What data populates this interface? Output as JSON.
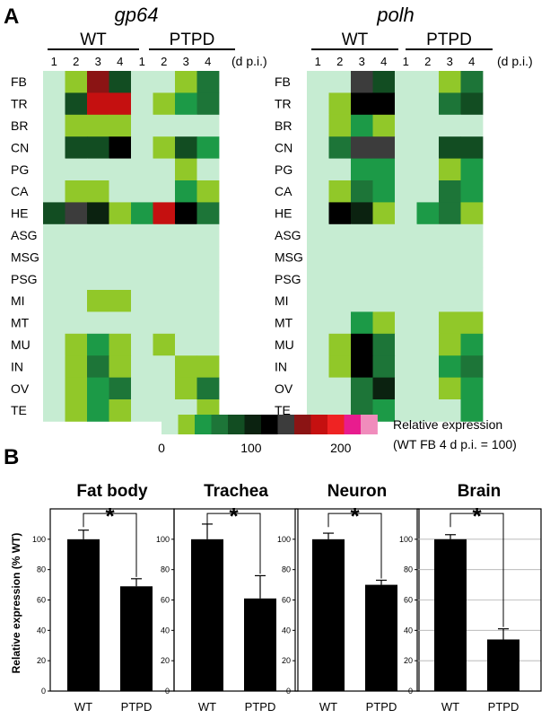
{
  "panel_a": {
    "label": "A",
    "day_unit": "(d p.i.)",
    "groups": [
      "WT",
      "PTPD"
    ],
    "days": [
      "1",
      "2",
      "3",
      "4"
    ],
    "tissues": [
      "FB",
      "TR",
      "BR",
      "CN",
      "PG",
      "CA",
      "HE",
      "ASG",
      "MSG",
      "PSG",
      "MI",
      "MT",
      "MU",
      "IN",
      "OV",
      "TE"
    ],
    "colors": {
      "0": "#c6ecd2",
      "1": "#91c829",
      "2": "#1c9a47",
      "3": "#1d7538",
      "4": "#124d22",
      "5": "#0b2210",
      "6": "#000000",
      "7": "#3c3c3c",
      "8": "#8b1414",
      "9": "#c51010",
      "10": "#ef2323",
      "11": "#e81c8e",
      "12": "#f08cbc"
    }
  },
  "legend": {
    "ticks": [
      "0",
      "100",
      "200"
    ],
    "title_line1": "Relative expression",
    "title_line2": "(WT FB 4 d p.i. = 100)"
  },
  "panel_b": {
    "label": "B",
    "ylabel": "Relative expression (% WT)"
  },
  "chart_data": [
    {
      "type": "heatmap",
      "title": "gp64",
      "column_groups": [
        "WT",
        "PTPD"
      ],
      "columns": [
        "1",
        "2",
        "3",
        "4",
        "1",
        "2",
        "3",
        "4"
      ],
      "xlabel": "(d p.i.)",
      "rows": [
        "FB",
        "TR",
        "BR",
        "CN",
        "PG",
        "CA",
        "HE",
        "ASG",
        "MSG",
        "PSG",
        "MI",
        "MT",
        "MU",
        "IN",
        "OV",
        "TE"
      ],
      "scale": {
        "min": 0,
        "max": 200,
        "levels": 13
      },
      "values": [
        [
          0,
          1,
          8,
          4,
          0,
          0,
          1,
          3
        ],
        [
          0,
          4,
          9,
          9,
          0,
          1,
          2,
          3
        ],
        [
          0,
          1,
          1,
          1,
          0,
          0,
          0,
          0
        ],
        [
          0,
          4,
          4,
          6,
          0,
          1,
          4,
          2
        ],
        [
          0,
          0,
          0,
          0,
          0,
          0,
          1,
          0
        ],
        [
          0,
          1,
          1,
          0,
          0,
          0,
          2,
          1
        ],
        [
          4,
          7,
          5,
          1,
          2,
          9,
          6,
          3
        ],
        [
          0,
          0,
          0,
          0,
          0,
          0,
          0,
          0
        ],
        [
          0,
          0,
          0,
          0,
          0,
          0,
          0,
          0
        ],
        [
          0,
          0,
          0,
          0,
          0,
          0,
          0,
          0
        ],
        [
          0,
          0,
          1,
          1,
          0,
          0,
          0,
          0
        ],
        [
          0,
          0,
          0,
          0,
          0,
          0,
          0,
          0
        ],
        [
          0,
          1,
          2,
          1,
          0,
          1,
          0,
          0
        ],
        [
          0,
          1,
          3,
          1,
          0,
          0,
          1,
          1
        ],
        [
          0,
          1,
          2,
          3,
          0,
          0,
          1,
          3
        ],
        [
          0,
          1,
          2,
          1,
          0,
          0,
          0,
          1
        ]
      ]
    },
    {
      "type": "heatmap",
      "title": "polh",
      "column_groups": [
        "WT",
        "PTPD"
      ],
      "columns": [
        "1",
        "2",
        "3",
        "4",
        "1",
        "2",
        "3",
        "4"
      ],
      "xlabel": "(d p.i.)",
      "rows": [
        "FB",
        "TR",
        "BR",
        "CN",
        "PG",
        "CA",
        "HE",
        "ASG",
        "MSG",
        "PSG",
        "MI",
        "MT",
        "MU",
        "IN",
        "OV",
        "TE"
      ],
      "scale": {
        "min": 0,
        "max": 200,
        "levels": 13
      },
      "values": [
        [
          0,
          0,
          7,
          4,
          0,
          0,
          1,
          3
        ],
        [
          0,
          1,
          6,
          6,
          0,
          0,
          3,
          4
        ],
        [
          0,
          1,
          2,
          1,
          0,
          0,
          0,
          0
        ],
        [
          0,
          3,
          7,
          7,
          0,
          0,
          4,
          4
        ],
        [
          0,
          0,
          2,
          2,
          0,
          0,
          1,
          2
        ],
        [
          0,
          1,
          3,
          2,
          0,
          0,
          3,
          2
        ],
        [
          0,
          6,
          5,
          1,
          0,
          2,
          3,
          1
        ],
        [
          0,
          0,
          0,
          0,
          0,
          0,
          0,
          0
        ],
        [
          0,
          0,
          0,
          0,
          0,
          0,
          0,
          0
        ],
        [
          0,
          0,
          0,
          0,
          0,
          0,
          0,
          0
        ],
        [
          0,
          0,
          0,
          0,
          0,
          0,
          0,
          0
        ],
        [
          0,
          0,
          2,
          1,
          0,
          0,
          1,
          1
        ],
        [
          0,
          1,
          6,
          3,
          0,
          0,
          1,
          2
        ],
        [
          0,
          1,
          6,
          3,
          0,
          0,
          2,
          3
        ],
        [
          0,
          0,
          3,
          5,
          0,
          0,
          1,
          2
        ],
        [
          0,
          0,
          3,
          2,
          0,
          0,
          0,
          2
        ]
      ]
    },
    {
      "type": "bar",
      "title": "Fat body",
      "categories": [
        "WT",
        "PTPD"
      ],
      "values": [
        100,
        69
      ],
      "errors": [
        6,
        5
      ],
      "ylim": [
        0,
        120
      ],
      "yticks": [
        "0",
        "20",
        "40",
        "60",
        "80",
        "100"
      ],
      "significance": "*"
    },
    {
      "type": "bar",
      "title": "Trachea",
      "categories": [
        "WT",
        "PTPD"
      ],
      "values": [
        100,
        61
      ],
      "errors": [
        10,
        15
      ],
      "ylim": [
        0,
        120
      ],
      "yticks": [
        "0",
        "20",
        "40",
        "60",
        "80",
        "100"
      ],
      "significance": "*"
    },
    {
      "type": "bar",
      "title": "Neuron",
      "categories": [
        "WT",
        "PTPD"
      ],
      "values": [
        100,
        70
      ],
      "errors": [
        4,
        3
      ],
      "ylim": [
        0,
        120
      ],
      "yticks": [
        "0",
        "20",
        "40",
        "60",
        "80",
        "100"
      ],
      "significance": "*"
    },
    {
      "type": "bar",
      "title": "Brain",
      "categories": [
        "WT",
        "PTPD"
      ],
      "values": [
        100,
        34
      ],
      "errors": [
        3,
        7
      ],
      "ylim": [
        0,
        120
      ],
      "yticks": [
        "0",
        "20",
        "40",
        "60",
        "80",
        "100"
      ],
      "significance": "*"
    }
  ]
}
